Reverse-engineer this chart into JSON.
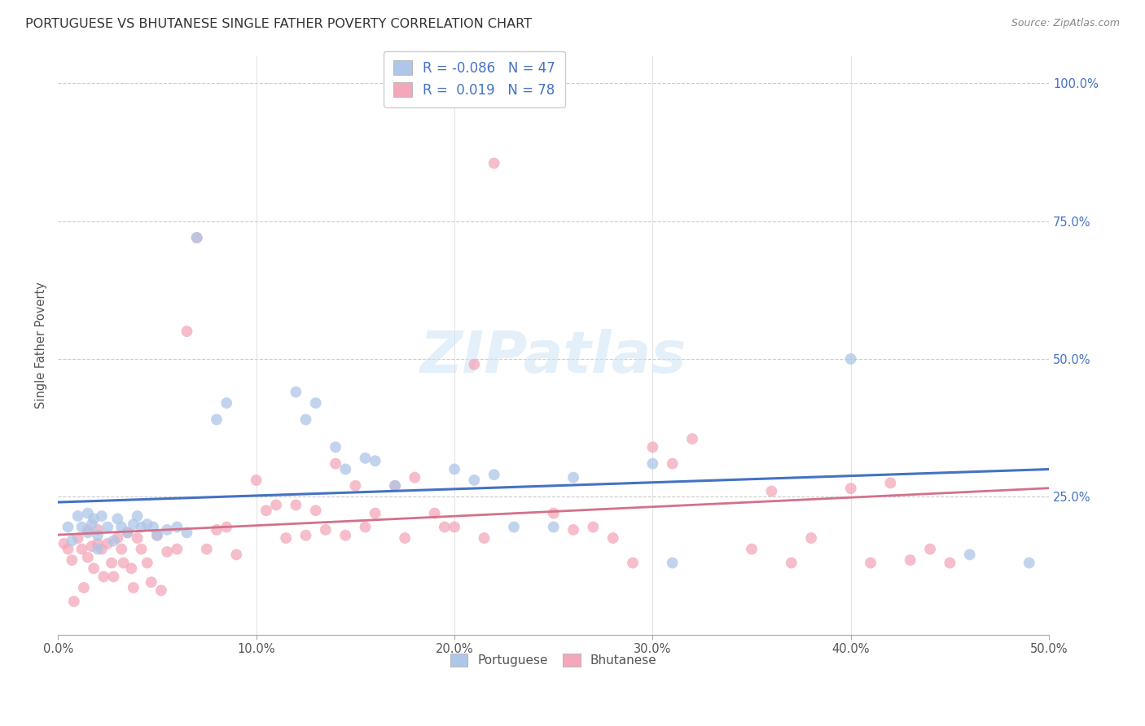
{
  "title": "PORTUGUESE VS BHUTANESE SINGLE FATHER POVERTY CORRELATION CHART",
  "source": "Source: ZipAtlas.com",
  "ylabel": "Single Father Poverty",
  "xlim": [
    0.0,
    0.5
  ],
  "ylim": [
    0.0,
    1.05
  ],
  "xtick_labels": [
    "0.0%",
    "10.0%",
    "20.0%",
    "30.0%",
    "40.0%",
    "50.0%"
  ],
  "xtick_values": [
    0.0,
    0.1,
    0.2,
    0.3,
    0.4,
    0.5
  ],
  "ytick_labels": [
    "100.0%",
    "75.0%",
    "50.0%",
    "25.0%"
  ],
  "ytick_values": [
    1.0,
    0.75,
    0.5,
    0.25
  ],
  "portuguese_color": "#aec6e8",
  "bhutanese_color": "#f4a7b9",
  "portuguese_line_color": "#4472c4",
  "bhutanese_line_color": "#d4708a",
  "legend_label_portuguese": "R = -0.086   N = 47",
  "legend_label_bhutanese": "R =  0.019   N = 78",
  "watermark": "ZIPatlas",
  "portuguese_x": [
    0.005,
    0.007,
    0.01,
    0.012,
    0.015,
    0.015,
    0.017,
    0.018,
    0.02,
    0.02,
    0.022,
    0.025,
    0.028,
    0.03,
    0.032,
    0.035,
    0.038,
    0.04,
    0.042,
    0.045,
    0.048,
    0.05,
    0.055,
    0.06,
    0.065,
    0.07,
    0.08,
    0.085,
    0.12,
    0.125,
    0.13,
    0.14,
    0.145,
    0.155,
    0.16,
    0.17,
    0.2,
    0.21,
    0.22,
    0.23,
    0.25,
    0.26,
    0.3,
    0.31,
    0.4,
    0.46,
    0.49
  ],
  "portuguese_y": [
    0.195,
    0.17,
    0.215,
    0.195,
    0.22,
    0.185,
    0.2,
    0.21,
    0.18,
    0.155,
    0.215,
    0.195,
    0.17,
    0.21,
    0.195,
    0.185,
    0.2,
    0.215,
    0.195,
    0.2,
    0.195,
    0.18,
    0.19,
    0.195,
    0.185,
    0.72,
    0.39,
    0.42,
    0.44,
    0.39,
    0.42,
    0.34,
    0.3,
    0.32,
    0.315,
    0.27,
    0.3,
    0.28,
    0.29,
    0.195,
    0.195,
    0.285,
    0.31,
    0.13,
    0.5,
    0.145,
    0.13
  ],
  "bhutanese_x": [
    0.003,
    0.005,
    0.007,
    0.008,
    0.01,
    0.012,
    0.013,
    0.015,
    0.015,
    0.017,
    0.018,
    0.02,
    0.02,
    0.022,
    0.023,
    0.025,
    0.027,
    0.028,
    0.03,
    0.032,
    0.033,
    0.035,
    0.037,
    0.038,
    0.04,
    0.042,
    0.045,
    0.047,
    0.05,
    0.052,
    0.055,
    0.06,
    0.065,
    0.07,
    0.075,
    0.08,
    0.085,
    0.09,
    0.1,
    0.105,
    0.11,
    0.115,
    0.12,
    0.125,
    0.13,
    0.135,
    0.14,
    0.145,
    0.15,
    0.155,
    0.16,
    0.17,
    0.175,
    0.18,
    0.19,
    0.195,
    0.2,
    0.21,
    0.215,
    0.22,
    0.25,
    0.26,
    0.27,
    0.28,
    0.29,
    0.3,
    0.31,
    0.32,
    0.35,
    0.36,
    0.37,
    0.38,
    0.4,
    0.41,
    0.42,
    0.43,
    0.44,
    0.45
  ],
  "bhutanese_y": [
    0.165,
    0.155,
    0.135,
    0.06,
    0.175,
    0.155,
    0.085,
    0.19,
    0.14,
    0.16,
    0.12,
    0.19,
    0.165,
    0.155,
    0.105,
    0.165,
    0.13,
    0.105,
    0.175,
    0.155,
    0.13,
    0.185,
    0.12,
    0.085,
    0.175,
    0.155,
    0.13,
    0.095,
    0.18,
    0.08,
    0.15,
    0.155,
    0.55,
    0.72,
    0.155,
    0.19,
    0.195,
    0.145,
    0.28,
    0.225,
    0.235,
    0.175,
    0.235,
    0.18,
    0.225,
    0.19,
    0.31,
    0.18,
    0.27,
    0.195,
    0.22,
    0.27,
    0.175,
    0.285,
    0.22,
    0.195,
    0.195,
    0.49,
    0.175,
    0.855,
    0.22,
    0.19,
    0.195,
    0.175,
    0.13,
    0.34,
    0.31,
    0.355,
    0.155,
    0.26,
    0.13,
    0.175,
    0.265,
    0.13,
    0.275,
    0.135,
    0.155,
    0.13
  ]
}
